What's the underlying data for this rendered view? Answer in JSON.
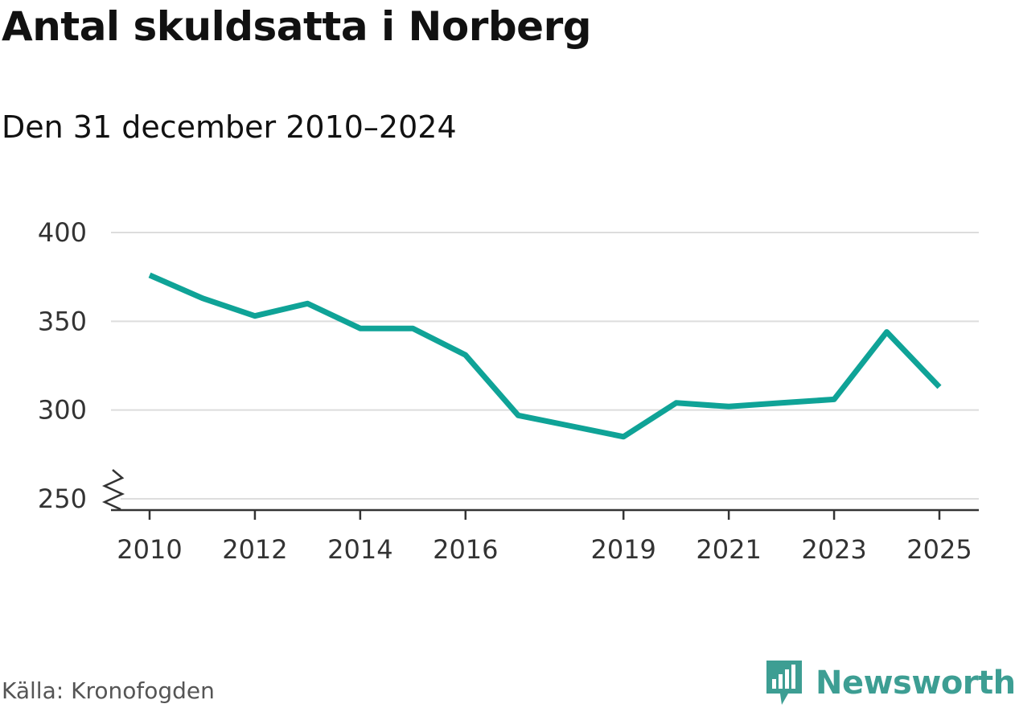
{
  "title": "Antal skuldsatta i Norberg",
  "subtitle": "Den 31 december 2010–2024",
  "source": "Källa: Kronofogden",
  "brand": {
    "name": "Newsworthy",
    "icon": "newsworthy-logo-icon",
    "color": "#3d9e93"
  },
  "colors": {
    "line": "#0fa397",
    "grid": "#dddddd",
    "axis": "#333333"
  },
  "chart_data": {
    "type": "line",
    "title": "Antal skuldsatta i Norberg",
    "subtitle": "Den 31 december 2010–2024",
    "xlabel": "",
    "ylabel": "",
    "x": [
      2010,
      2011,
      2012,
      2013,
      2014,
      2015,
      2016,
      2017,
      2018,
      2019,
      2020,
      2021,
      2022,
      2023,
      2024,
      2025
    ],
    "series": [
      {
        "name": "Antal skuldsatta",
        "values": [
          376,
          363,
          353,
          360,
          346,
          346,
          331,
          297,
          291,
          285,
          304,
          302,
          304,
          306,
          344,
          313
        ]
      }
    ],
    "x_ticks": [
      2010,
      2012,
      2014,
      2016,
      2019,
      2021,
      2023,
      2025
    ],
    "x_tick_labels": [
      "2010",
      "2012",
      "2014",
      "2016",
      "2019",
      "2021",
      "2023",
      "2025"
    ],
    "y_ticks": [
      250,
      300,
      350,
      400
    ],
    "y_tick_labels": [
      "250",
      "300",
      "350",
      "400"
    ],
    "xlim": [
      2009.6,
      2025.4
    ],
    "ylim": [
      250,
      400
    ],
    "grid": true,
    "axis_break": true
  }
}
